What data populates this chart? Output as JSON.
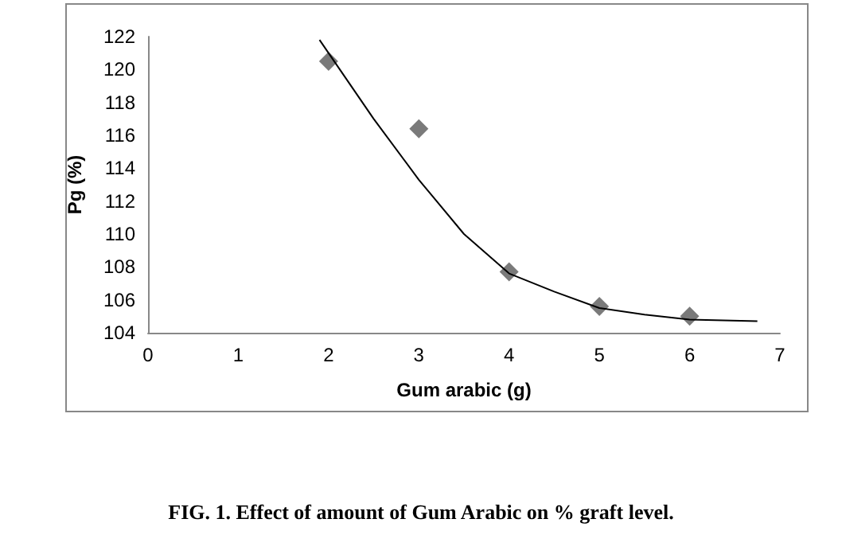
{
  "chart_data": {
    "type": "scatter",
    "xlabel": "Gum arabic (g)",
    "ylabel": "Pg (%)",
    "annotations": [
      "FIG. 1. Effect of amount of Gum Arabic on % graft level."
    ],
    "series": [
      {
        "type": "scatter",
        "color": "#595959",
        "marker": "diamond",
        "x": [
          2,
          3,
          4,
          5,
          6
        ],
        "values": [
          120.5,
          116.4,
          107.7,
          105.6,
          105.0
        ]
      },
      {
        "type": "line",
        "color": "#000000",
        "marker": "none",
        "line_style": "solid",
        "x": [
          1.9,
          2.5,
          3,
          3.5,
          4,
          4.5,
          5,
          5.5,
          6,
          6.75
        ],
        "values": [
          121.8,
          117.0,
          113.3,
          110.0,
          107.6,
          106.5,
          105.5,
          105.1,
          104.8,
          104.7
        ]
      }
    ],
    "xlim": [
      0,
      7
    ],
    "xticks": [
      0,
      1,
      2,
      3,
      4,
      5,
      6,
      7
    ],
    "ylim": [
      104,
      122
    ],
    "yticks": [
      104,
      106,
      108,
      110,
      112,
      114,
      116,
      118,
      120,
      122
    ],
    "grid": false
  }
}
